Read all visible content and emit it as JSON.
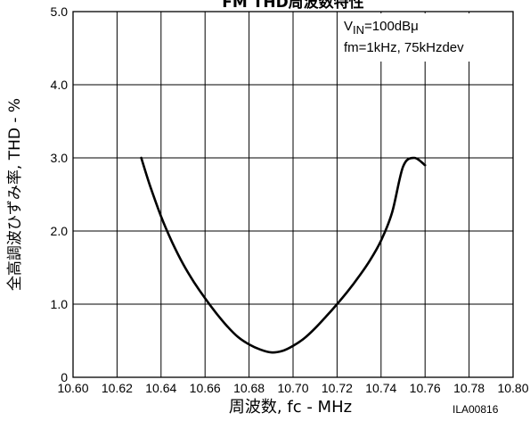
{
  "chart_data": {
    "type": "line",
    "title": "FM THD周波数特性",
    "xlabel": "周波数, fc - MHz",
    "ylabel": "全高調波ひずみ率, THD - %",
    "xlim": [
      10.6,
      10.8
    ],
    "ylim": [
      0,
      5.0
    ],
    "x_ticks": [
      "10.60",
      "10.62",
      "10.64",
      "10.66",
      "10.68",
      "10.70",
      "10.72",
      "10.74",
      "10.76",
      "10.78",
      "10.80"
    ],
    "y_ticks": [
      "0",
      "1.0",
      "2.0",
      "3.0",
      "4.0",
      "5.0"
    ],
    "grid": true,
    "annotation": {
      "line1_main": "V",
      "line1_sub": "IN",
      "line1_rest": "=100dBμ",
      "line2": "fm=1kHz, 75kHzdev"
    },
    "code": "ILA00816",
    "series": [
      {
        "x": [
          10.631,
          10.635,
          10.64,
          10.645,
          10.65,
          10.655,
          10.66,
          10.665,
          10.67,
          10.675,
          10.68,
          10.685,
          10.69,
          10.695,
          10.7,
          10.705,
          10.71,
          10.715,
          10.72,
          10.725,
          10.73,
          10.735,
          10.74,
          10.745,
          10.75,
          10.755,
          10.76
        ],
        "y": [
          3.0,
          2.62,
          2.2,
          1.85,
          1.55,
          1.3,
          1.08,
          0.88,
          0.7,
          0.55,
          0.45,
          0.38,
          0.34,
          0.36,
          0.43,
          0.53,
          0.67,
          0.83,
          1.0,
          1.18,
          1.38,
          1.6,
          1.87,
          2.25,
          2.88,
          3.0,
          2.9
        ]
      }
    ]
  }
}
